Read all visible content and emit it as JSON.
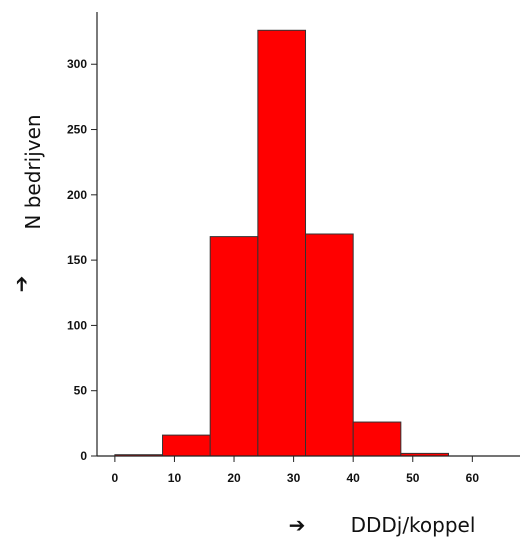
{
  "chart_data": {
    "type": "bar",
    "subtype": "histogram",
    "bins": [
      {
        "x0": 0,
        "x1": 8,
        "value": 1
      },
      {
        "x0": 8,
        "x1": 16,
        "value": 16
      },
      {
        "x0": 16,
        "x1": 24,
        "value": 168
      },
      {
        "x0": 24,
        "x1": 32,
        "value": 326
      },
      {
        "x0": 32,
        "x1": 40,
        "value": 170
      },
      {
        "x0": 40,
        "x1": 48,
        "value": 26
      },
      {
        "x0": 48,
        "x1": 56,
        "value": 2
      },
      {
        "x0": 56,
        "x1": 64,
        "value": 0
      }
    ],
    "xticks": [
      0,
      10,
      20,
      30,
      40,
      50,
      60
    ],
    "yticks": [
      0,
      50,
      100,
      150,
      200,
      250,
      300
    ],
    "xlim": [
      -3,
      68
    ],
    "ylim": [
      0,
      340
    ],
    "xlabel": "DDDj/koppel",
    "ylabel": "N bedrijven",
    "axis_arrow": "➔",
    "bar_color": "#ff0000",
    "edge_color": "#333333",
    "grid": false
  }
}
